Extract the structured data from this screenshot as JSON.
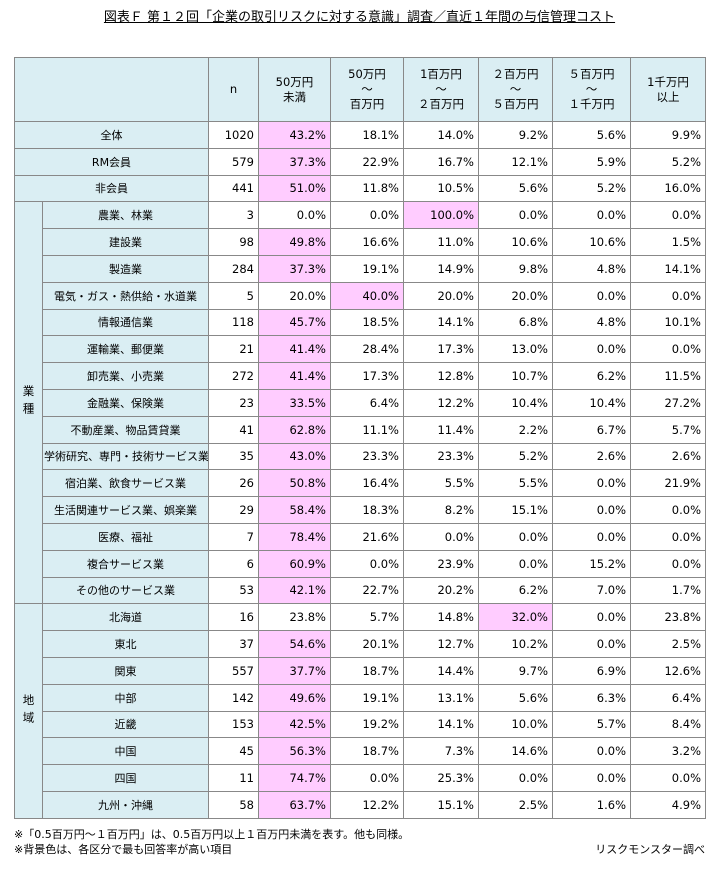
{
  "title": "図表Ｆ 第１２回「企業の取引リスクに対する意識」調査／直近１年間の与信管理コスト",
  "header_color": "#daeef3",
  "highlight_color": "#ffccff",
  "table": {
    "header": [
      "n",
      "50万円\n未満",
      "50万円\n～\n百万円",
      "1百万円\n～\n２百万円",
      "２百万円\n～\n５百万円",
      "５百万円\n～\n１千万円",
      "1千万円\n以上"
    ],
    "sections": [
      {
        "rows": [
          {
            "label": "全体",
            "n": "1020",
            "values": [
              "43.2%",
              "18.1%",
              "14.0%",
              "9.2%",
              "5.6%",
              "9.9%"
            ],
            "highlight": 0
          },
          {
            "label": "RM会員",
            "n": "579",
            "values": [
              "37.3%",
              "22.9%",
              "16.7%",
              "12.1%",
              "5.9%",
              "5.2%"
            ],
            "highlight": 0
          },
          {
            "label": "非会員",
            "n": "441",
            "values": [
              "51.0%",
              "11.8%",
              "10.5%",
              "5.6%",
              "5.2%",
              "16.0%"
            ],
            "highlight": 0
          }
        ]
      },
      {
        "group": "業種",
        "rows": [
          {
            "label": "農業、林業",
            "n": "3",
            "values": [
              "0.0%",
              "0.0%",
              "100.0%",
              "0.0%",
              "0.0%",
              "0.0%"
            ],
            "highlight": 2
          },
          {
            "label": "建設業",
            "n": "98",
            "values": [
              "49.8%",
              "16.6%",
              "11.0%",
              "10.6%",
              "10.6%",
              "1.5%"
            ],
            "highlight": 0
          },
          {
            "label": "製造業",
            "n": "284",
            "values": [
              "37.3%",
              "19.1%",
              "14.9%",
              "9.8%",
              "4.8%",
              "14.1%"
            ],
            "highlight": 0
          },
          {
            "label": "電気・ガス・熱供給・水道業",
            "n": "5",
            "values": [
              "20.0%",
              "40.0%",
              "20.0%",
              "20.0%",
              "0.0%",
              "0.0%"
            ],
            "highlight": 1
          },
          {
            "label": "情報通信業",
            "n": "118",
            "values": [
              "45.7%",
              "18.5%",
              "14.1%",
              "6.8%",
              "4.8%",
              "10.1%"
            ],
            "highlight": 0
          },
          {
            "label": "運輸業、郵便業",
            "n": "21",
            "values": [
              "41.4%",
              "28.4%",
              "17.3%",
              "13.0%",
              "0.0%",
              "0.0%"
            ],
            "highlight": 0
          },
          {
            "label": "卸売業、小売業",
            "n": "272",
            "values": [
              "41.4%",
              "17.3%",
              "12.8%",
              "10.7%",
              "6.2%",
              "11.5%"
            ],
            "highlight": 0
          },
          {
            "label": "金融業、保険業",
            "n": "23",
            "values": [
              "33.5%",
              "6.4%",
              "12.2%",
              "10.4%",
              "10.4%",
              "27.2%"
            ],
            "highlight": 0
          },
          {
            "label": "不動産業、物品賃貸業",
            "n": "41",
            "values": [
              "62.8%",
              "11.1%",
              "11.4%",
              "2.2%",
              "6.7%",
              "5.7%"
            ],
            "highlight": 0
          },
          {
            "label": "学術研究、専門・技術サービス業",
            "n": "35",
            "values": [
              "43.0%",
              "23.3%",
              "23.3%",
              "5.2%",
              "2.6%",
              "2.6%"
            ],
            "highlight": 0
          },
          {
            "label": "宿泊業、飲食サービス業",
            "n": "26",
            "values": [
              "50.8%",
              "16.4%",
              "5.5%",
              "5.5%",
              "0.0%",
              "21.9%"
            ],
            "highlight": 0
          },
          {
            "label": "生活関連サービス業、娯楽業",
            "n": "29",
            "values": [
              "58.4%",
              "18.3%",
              "8.2%",
              "15.1%",
              "0.0%",
              "0.0%"
            ],
            "highlight": 0
          },
          {
            "label": "医療、福祉",
            "n": "7",
            "values": [
              "78.4%",
              "21.6%",
              "0.0%",
              "0.0%",
              "0.0%",
              "0.0%"
            ],
            "highlight": 0
          },
          {
            "label": "複合サービス業",
            "n": "6",
            "values": [
              "60.9%",
              "0.0%",
              "23.9%",
              "0.0%",
              "15.2%",
              "0.0%"
            ],
            "highlight": 0
          },
          {
            "label": "その他のサービス業",
            "n": "53",
            "values": [
              "42.1%",
              "22.7%",
              "20.2%",
              "6.2%",
              "7.0%",
              "1.7%"
            ],
            "highlight": 0
          }
        ]
      },
      {
        "group": "地域",
        "rows": [
          {
            "label": "北海道",
            "n": "16",
            "values": [
              "23.8%",
              "5.7%",
              "14.8%",
              "32.0%",
              "0.0%",
              "23.8%"
            ],
            "highlight": 3
          },
          {
            "label": "東北",
            "n": "37",
            "values": [
              "54.6%",
              "20.1%",
              "12.7%",
              "10.2%",
              "0.0%",
              "2.5%"
            ],
            "highlight": 0
          },
          {
            "label": "関東",
            "n": "557",
            "values": [
              "37.7%",
              "18.7%",
              "14.4%",
              "9.7%",
              "6.9%",
              "12.6%"
            ],
            "highlight": 0
          },
          {
            "label": "中部",
            "n": "142",
            "values": [
              "49.6%",
              "19.1%",
              "13.1%",
              "5.6%",
              "6.3%",
              "6.4%"
            ],
            "highlight": 0
          },
          {
            "label": "近畿",
            "n": "153",
            "values": [
              "42.5%",
              "19.2%",
              "14.1%",
              "10.0%",
              "5.7%",
              "8.4%"
            ],
            "highlight": 0
          },
          {
            "label": "中国",
            "n": "45",
            "values": [
              "56.3%",
              "18.7%",
              "7.3%",
              "14.6%",
              "0.0%",
              "3.2%"
            ],
            "highlight": 0
          },
          {
            "label": "四国",
            "n": "11",
            "values": [
              "74.7%",
              "0.0%",
              "25.3%",
              "0.0%",
              "0.0%",
              "0.0%"
            ],
            "highlight": 0
          },
          {
            "label": "九州・沖縄",
            "n": "58",
            "values": [
              "63.7%",
              "12.2%",
              "15.1%",
              "2.5%",
              "1.6%",
              "4.9%"
            ],
            "highlight": 0
          }
        ]
      }
    ]
  },
  "footnotes": [
    "※「0.5百万円～１百万円」は、0.5百万円以上１百万円未満を表す。他も同様。",
    "※背景色は、各区分で最も回答率が高い項目"
  ],
  "source": "リスクモンスター調べ"
}
